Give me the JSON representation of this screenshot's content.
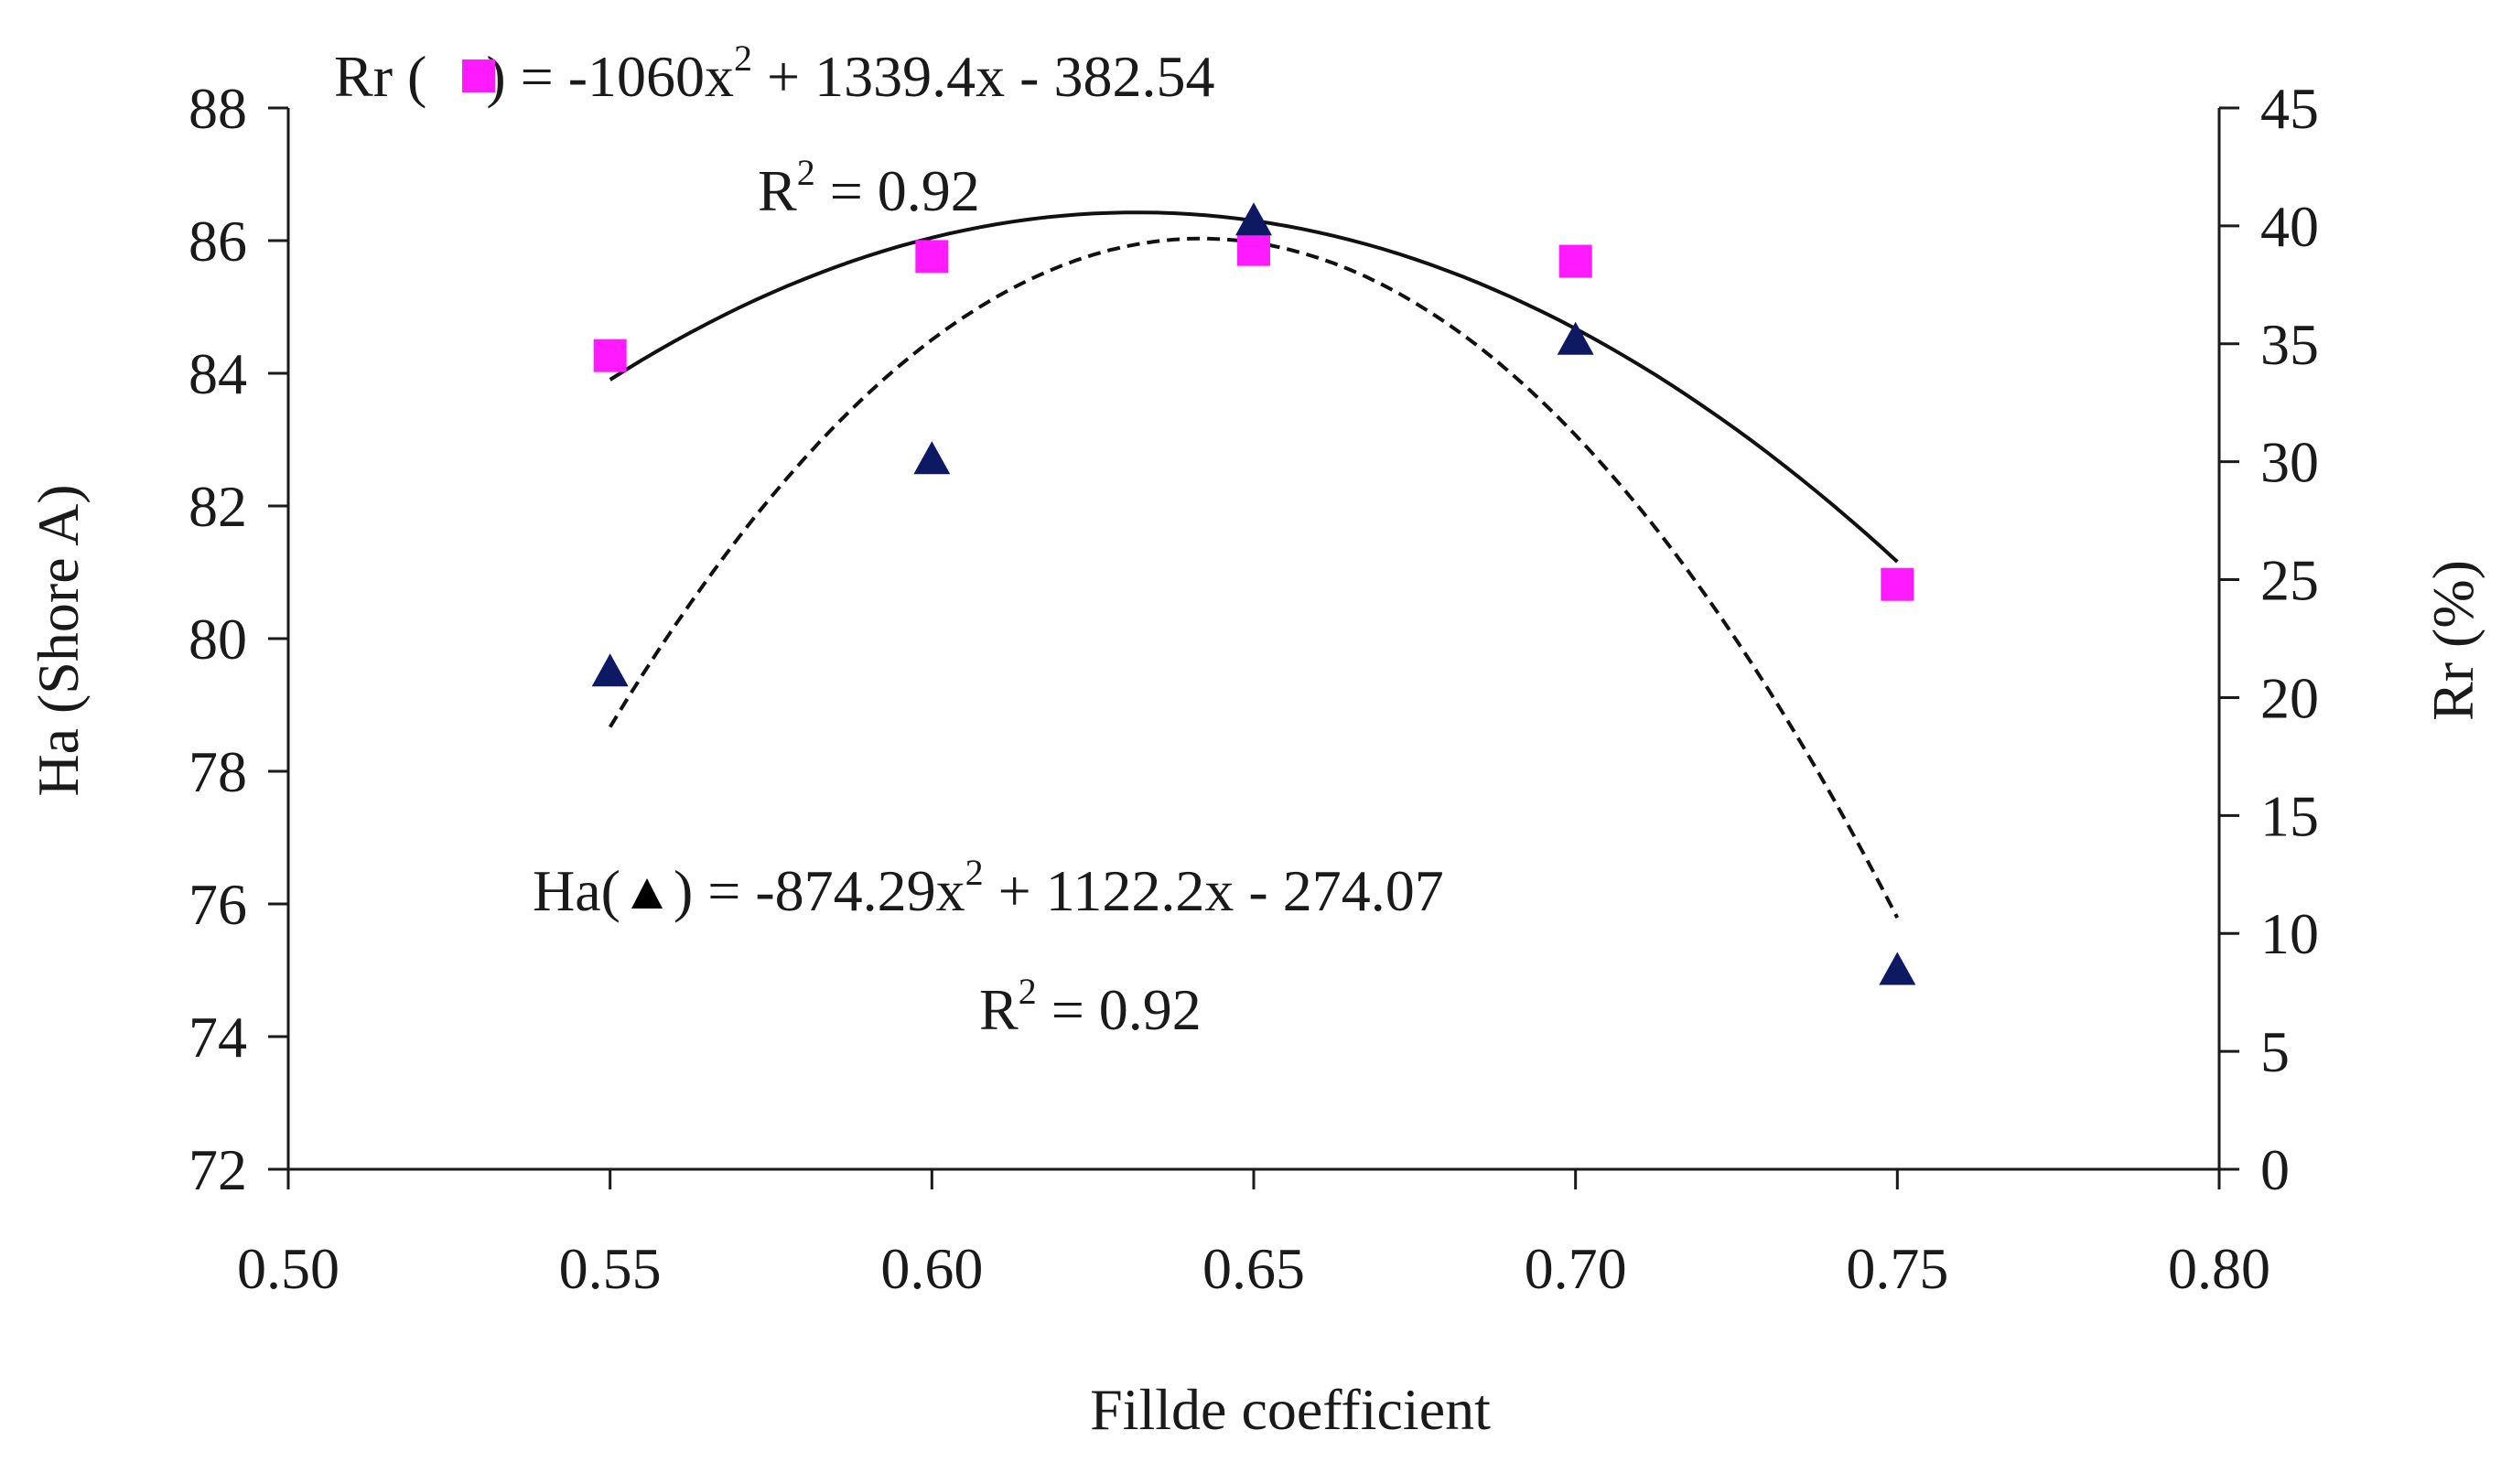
{
  "chart_data": {
    "type": "scatter",
    "xlabel": "Fillde coefficient",
    "ylabel_left": "Ha (Shore A)",
    "ylabel_right": "Rr (%)",
    "xlim": [
      0.5,
      0.8
    ],
    "ylim_left": [
      72,
      88
    ],
    "ylim_right": [
      0,
      45
    ],
    "x_ticks": [
      "0.50",
      "0.55",
      "0.60",
      "0.65",
      "0.70",
      "0.75",
      "0.80"
    ],
    "y_left_ticks": [
      "72",
      "74",
      "76",
      "78",
      "80",
      "82",
      "84",
      "86",
      "88"
    ],
    "y_right_ticks": [
      "0",
      "5",
      "10",
      "15",
      "20",
      "25",
      "30",
      "35",
      "40",
      "45"
    ],
    "grid": false,
    "series": [
      {
        "name": "Rr",
        "axis": "right",
        "marker": "square",
        "color": "#ff1aff",
        "points": [
          {
            "x": 0.55,
            "y": 34.5
          },
          {
            "x": 0.6,
            "y": 38.7
          },
          {
            "x": 0.65,
            "y": 39.0
          },
          {
            "x": 0.7,
            "y": 38.5
          },
          {
            "x": 0.75,
            "y": 24.8
          }
        ],
        "trendline": {
          "style": "solid",
          "coefficients": [
            -1060,
            1339.4,
            -382.54
          ],
          "x_range": [
            0.55,
            0.75
          ]
        }
      },
      {
        "name": "Ha",
        "axis": "left",
        "marker": "triangle",
        "color": "#0d1a63",
        "points": [
          {
            "x": 0.55,
            "y": 79.5
          },
          {
            "x": 0.6,
            "y": 82.7
          },
          {
            "x": 0.65,
            "y": 86.3
          },
          {
            "x": 0.7,
            "y": 84.5
          },
          {
            "x": 0.75,
            "y": 75.0
          }
        ],
        "trendline": {
          "style": "dashed",
          "coefficients": [
            -874.29,
            1122.2,
            -274.07
          ],
          "x_range": [
            0.55,
            0.75
          ]
        }
      }
    ],
    "annotations": {
      "rr_equation": {
        "prefix": "Rr (",
        "suffix": ")  = -1060x",
        "sup": "2",
        "rest": " + 1339.4x - 382.54"
      },
      "rr_r2": {
        "prefix": "R",
        "sup": "2",
        "rest": " = 0.92"
      },
      "ha_equation": {
        "prefix": "Ha(",
        "suffix": ")  = -874.29x",
        "sup": "2",
        "rest": " + 1122.2x - 274.07"
      },
      "ha_r2": {
        "prefix": "R",
        "sup": "2",
        "rest": " = 0.92"
      }
    }
  }
}
